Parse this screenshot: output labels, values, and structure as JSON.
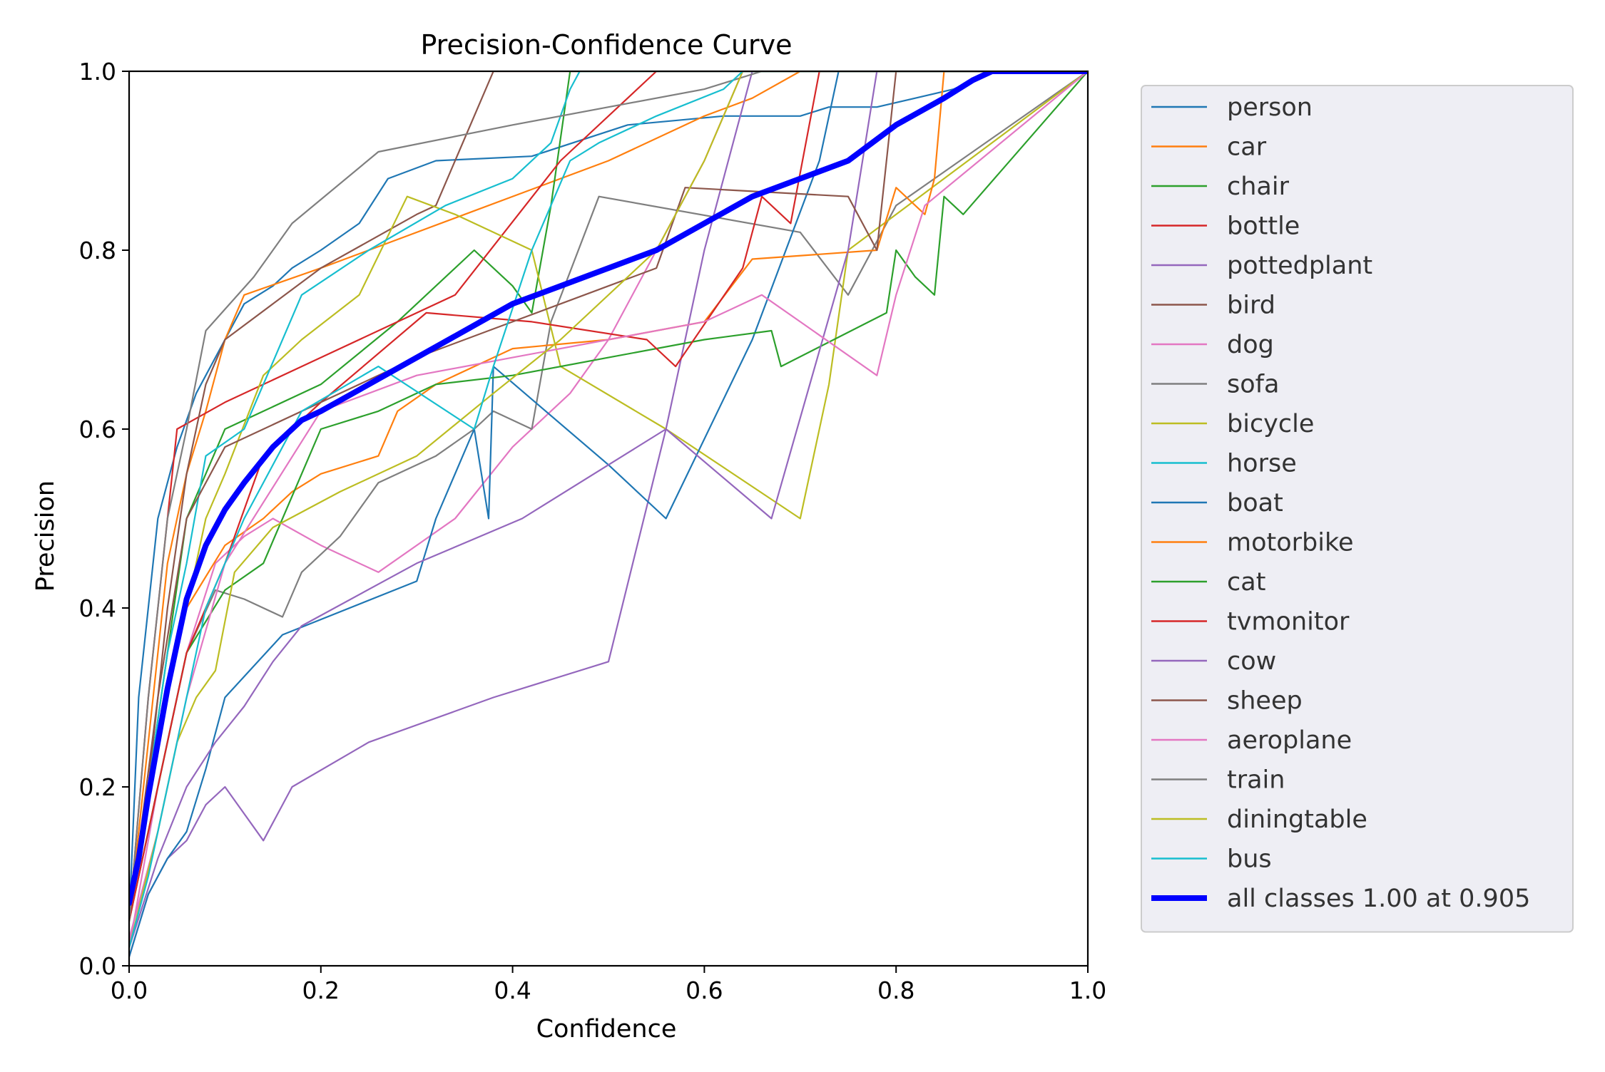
{
  "chart_data": {
    "type": "line",
    "title": "Precision-Confidence Curve",
    "xlabel": "Confidence",
    "ylabel": "Precision",
    "xlim": [
      0,
      1
    ],
    "ylim": [
      0,
      1
    ],
    "xticks": [
      "0.0",
      "0.2",
      "0.4",
      "0.6",
      "0.8",
      "1.0"
    ],
    "yticks": [
      "0.0",
      "0.2",
      "0.4",
      "0.6",
      "0.8",
      "1.0"
    ],
    "grid": false,
    "legend_position": "outside-right",
    "series": [
      {
        "name": "person",
        "color": "#1f77b4",
        "x": [
          0,
          0.01,
          0.03,
          0.05,
          0.07,
          0.08,
          0.1,
          0.12,
          0.15,
          0.17,
          0.2,
          0.24,
          0.27,
          0.32,
          0.42,
          0.52,
          0.62,
          0.7,
          0.73,
          0.78,
          0.82,
          0.86,
          0.9,
          1.0
        ],
        "y": [
          0.05,
          0.3,
          0.5,
          0.58,
          0.64,
          0.66,
          0.7,
          0.74,
          0.76,
          0.78,
          0.8,
          0.83,
          0.88,
          0.9,
          0.905,
          0.94,
          0.95,
          0.95,
          0.96,
          0.96,
          0.97,
          0.98,
          1.0,
          1.0
        ]
      },
      {
        "name": "car",
        "color": "#ff7f0e",
        "x": [
          0,
          0.02,
          0.04,
          0.06,
          0.08,
          0.1,
          0.12,
          0.2,
          0.35,
          0.5,
          0.6,
          0.65,
          0.7,
          1.0
        ],
        "y": [
          0.05,
          0.25,
          0.45,
          0.55,
          0.62,
          0.7,
          0.75,
          0.78,
          0.84,
          0.9,
          0.95,
          0.97,
          1.0,
          1.0
        ]
      },
      {
        "name": "chair",
        "color": "#2ca02c",
        "x": [
          0,
          0.02,
          0.04,
          0.06,
          0.1,
          0.14,
          0.2,
          0.28,
          0.36,
          0.4,
          0.42,
          0.44,
          0.46,
          1.0
        ],
        "y": [
          0.05,
          0.2,
          0.35,
          0.5,
          0.6,
          0.62,
          0.65,
          0.72,
          0.8,
          0.76,
          0.73,
          0.85,
          1.0,
          1.0
        ]
      },
      {
        "name": "bottle",
        "color": "#d62728",
        "x": [
          0,
          0.02,
          0.04,
          0.05,
          0.1,
          0.2,
          0.34,
          0.45,
          0.55,
          1.0
        ],
        "y": [
          0.05,
          0.3,
          0.5,
          0.6,
          0.63,
          0.68,
          0.75,
          0.9,
          1.0,
          1.0
        ]
      },
      {
        "name": "pottedplant",
        "color": "#9467bd",
        "x": [
          0,
          0.02,
          0.04,
          0.06,
          0.08,
          0.1,
          0.14,
          0.17,
          0.25,
          0.38,
          0.5,
          0.56,
          0.6,
          0.65,
          1.0
        ],
        "y": [
          0.01,
          0.08,
          0.12,
          0.14,
          0.18,
          0.2,
          0.14,
          0.2,
          0.25,
          0.3,
          0.34,
          0.6,
          0.8,
          1.0,
          1.0
        ]
      },
      {
        "name": "bird",
        "color": "#8c564b",
        "x": [
          0,
          0.02,
          0.04,
          0.06,
          0.08,
          0.1,
          0.15,
          0.2,
          0.3,
          0.32,
          0.38,
          1.0
        ],
        "y": [
          0.05,
          0.2,
          0.4,
          0.55,
          0.65,
          0.7,
          0.74,
          0.78,
          0.84,
          0.85,
          1.0,
          1.0
        ]
      },
      {
        "name": "dog",
        "color": "#e377c2",
        "x": [
          0,
          0.03,
          0.06,
          0.09,
          0.12,
          0.15,
          0.2,
          0.26,
          0.34,
          0.4,
          0.46,
          0.5,
          0.54,
          0.56,
          0.6,
          0.64,
          1.0
        ],
        "y": [
          0.02,
          0.2,
          0.35,
          0.45,
          0.48,
          0.5,
          0.47,
          0.44,
          0.5,
          0.58,
          0.64,
          0.7,
          0.78,
          0.82,
          0.9,
          1.0,
          1.0
        ]
      },
      {
        "name": "sofa",
        "color": "#7f7f7f",
        "x": [
          0,
          0.03,
          0.06,
          0.09,
          0.12,
          0.16,
          0.18,
          0.22,
          0.26,
          0.32,
          0.36,
          0.38,
          0.42,
          0.44,
          0.49,
          0.7,
          0.75,
          0.8,
          1.0
        ],
        "y": [
          0.05,
          0.2,
          0.35,
          0.42,
          0.41,
          0.39,
          0.44,
          0.48,
          0.54,
          0.57,
          0.6,
          0.62,
          0.6,
          0.72,
          0.86,
          0.82,
          0.75,
          0.85,
          1.0
        ]
      },
      {
        "name": "bicycle",
        "color": "#bcbd22",
        "x": [
          0,
          0.02,
          0.04,
          0.06,
          0.08,
          0.1,
          0.14,
          0.18,
          0.24,
          0.29,
          0.34,
          0.42,
          0.45,
          0.56,
          0.7,
          0.73,
          0.75,
          1.0
        ],
        "y": [
          0.05,
          0.2,
          0.3,
          0.4,
          0.5,
          0.55,
          0.66,
          0.7,
          0.75,
          0.86,
          0.84,
          0.8,
          0.67,
          0.6,
          0.5,
          0.65,
          0.8,
          1.0
        ]
      },
      {
        "name": "horse",
        "color": "#17becf",
        "x": [
          0,
          0.02,
          0.04,
          0.06,
          0.08,
          0.12,
          0.18,
          0.25,
          0.33,
          0.4,
          0.44,
          0.46,
          0.47,
          1.0
        ],
        "y": [
          0.05,
          0.2,
          0.35,
          0.45,
          0.57,
          0.6,
          0.75,
          0.8,
          0.85,
          0.88,
          0.92,
          0.98,
          1.0,
          1.0
        ]
      },
      {
        "name": "boat",
        "color": "#1f77b4",
        "x": [
          0,
          0.02,
          0.04,
          0.06,
          0.08,
          0.1,
          0.16,
          0.3,
          0.32,
          0.36,
          0.375,
          0.38,
          0.5,
          0.56,
          0.65,
          0.72,
          0.74,
          1.0
        ],
        "y": [
          0.01,
          0.08,
          0.12,
          0.15,
          0.22,
          0.3,
          0.37,
          0.43,
          0.5,
          0.6,
          0.5,
          0.67,
          0.56,
          0.5,
          0.7,
          0.9,
          1.0,
          1.0
        ]
      },
      {
        "name": "motorbike",
        "color": "#ff7f0e",
        "x": [
          0,
          0.03,
          0.06,
          0.1,
          0.14,
          0.17,
          0.2,
          0.26,
          0.28,
          0.32,
          0.4,
          0.5,
          0.6,
          0.65,
          0.78,
          0.8,
          0.83,
          0.84,
          0.85,
          1.0
        ],
        "y": [
          0.05,
          0.25,
          0.4,
          0.47,
          0.5,
          0.53,
          0.55,
          0.57,
          0.62,
          0.65,
          0.69,
          0.7,
          0.72,
          0.79,
          0.8,
          0.87,
          0.84,
          0.88,
          1.0,
          1.0
        ]
      },
      {
        "name": "cat",
        "color": "#2ca02c",
        "x": [
          0,
          0.03,
          0.06,
          0.1,
          0.14,
          0.2,
          0.26,
          0.32,
          0.4,
          0.5,
          0.6,
          0.67,
          0.68,
          0.79,
          0.8,
          0.82,
          0.84,
          0.85,
          0.87,
          1.0
        ],
        "y": [
          0.05,
          0.2,
          0.35,
          0.42,
          0.45,
          0.6,
          0.62,
          0.65,
          0.66,
          0.68,
          0.7,
          0.71,
          0.67,
          0.73,
          0.8,
          0.77,
          0.75,
          0.86,
          0.84,
          1.0
        ]
      },
      {
        "name": "tvmonitor",
        "color": "#d62728",
        "x": [
          0,
          0.03,
          0.06,
          0.1,
          0.14,
          0.2,
          0.31,
          0.42,
          0.54,
          0.57,
          0.64,
          0.66,
          0.69,
          0.72,
          1.0
        ],
        "y": [
          0.05,
          0.2,
          0.35,
          0.45,
          0.57,
          0.63,
          0.73,
          0.72,
          0.7,
          0.67,
          0.78,
          0.86,
          0.83,
          1.0,
          1.0
        ]
      },
      {
        "name": "cow",
        "color": "#9467bd",
        "x": [
          0,
          0.03,
          0.06,
          0.09,
          0.12,
          0.15,
          0.18,
          0.3,
          0.41,
          0.56,
          0.67,
          0.75,
          0.78,
          1.0
        ],
        "y": [
          0.02,
          0.12,
          0.2,
          0.25,
          0.29,
          0.34,
          0.38,
          0.45,
          0.5,
          0.6,
          0.5,
          0.8,
          1.0,
          1.0
        ]
      },
      {
        "name": "sheep",
        "color": "#8c564b",
        "x": [
          0,
          0.03,
          0.06,
          0.1,
          0.2,
          0.3,
          0.4,
          0.5,
          0.55,
          0.58,
          0.75,
          0.78,
          0.8,
          1.0
        ],
        "y": [
          0.05,
          0.3,
          0.5,
          0.58,
          0.63,
          0.68,
          0.72,
          0.76,
          0.78,
          0.87,
          0.86,
          0.8,
          1.0,
          1.0
        ]
      },
      {
        "name": "aeroplane",
        "color": "#e377c2",
        "x": [
          0,
          0.03,
          0.06,
          0.1,
          0.2,
          0.3,
          0.4,
          0.5,
          0.6,
          0.66,
          0.7,
          0.78,
          0.8,
          0.83,
          1.0
        ],
        "y": [
          0.03,
          0.15,
          0.3,
          0.45,
          0.62,
          0.66,
          0.68,
          0.7,
          0.72,
          0.75,
          0.72,
          0.66,
          0.75,
          0.85,
          1.0
        ]
      },
      {
        "name": "train",
        "color": "#7f7f7f",
        "x": [
          0,
          0.02,
          0.04,
          0.06,
          0.08,
          0.13,
          0.17,
          0.26,
          0.4,
          0.5,
          0.6,
          0.66,
          0.72,
          1.0
        ],
        "y": [
          0.05,
          0.3,
          0.5,
          0.6,
          0.71,
          0.77,
          0.83,
          0.91,
          0.94,
          0.96,
          0.98,
          1.0,
          1.0,
          1.0
        ]
      },
      {
        "name": "diningtable",
        "color": "#bcbd22",
        "x": [
          0,
          0.03,
          0.05,
          0.07,
          0.09,
          0.11,
          0.15,
          0.22,
          0.3,
          0.38,
          0.45,
          0.55,
          0.6,
          0.62,
          0.64,
          1.0
        ],
        "y": [
          0.02,
          0.15,
          0.25,
          0.3,
          0.33,
          0.44,
          0.49,
          0.53,
          0.57,
          0.64,
          0.7,
          0.8,
          0.9,
          0.95,
          1.0,
          1.0
        ]
      },
      {
        "name": "bus",
        "color": "#17becf",
        "x": [
          0,
          0.02,
          0.04,
          0.06,
          0.08,
          0.12,
          0.18,
          0.26,
          0.36,
          0.38,
          0.42,
          0.46,
          0.49,
          0.55,
          0.62,
          0.64,
          1.0
        ],
        "y": [
          0.02,
          0.1,
          0.2,
          0.3,
          0.4,
          0.5,
          0.62,
          0.67,
          0.6,
          0.67,
          0.8,
          0.9,
          0.92,
          0.95,
          0.98,
          1.0,
          1.0
        ]
      },
      {
        "name": "all classes 1.00 at 0.905",
        "color": "#0000ff",
        "thick": true,
        "x": [
          0,
          0.01,
          0.02,
          0.03,
          0.04,
          0.05,
          0.06,
          0.07,
          0.08,
          0.1,
          0.12,
          0.15,
          0.18,
          0.2,
          0.25,
          0.3,
          0.35,
          0.4,
          0.45,
          0.5,
          0.55,
          0.6,
          0.65,
          0.7,
          0.75,
          0.8,
          0.85,
          0.88,
          0.9,
          1.0
        ],
        "y": [
          0.07,
          0.12,
          0.19,
          0.25,
          0.31,
          0.36,
          0.41,
          0.44,
          0.47,
          0.51,
          0.54,
          0.58,
          0.61,
          0.62,
          0.65,
          0.68,
          0.71,
          0.74,
          0.76,
          0.78,
          0.8,
          0.83,
          0.86,
          0.88,
          0.9,
          0.94,
          0.97,
          0.99,
          1.0,
          1.0
        ]
      }
    ]
  }
}
